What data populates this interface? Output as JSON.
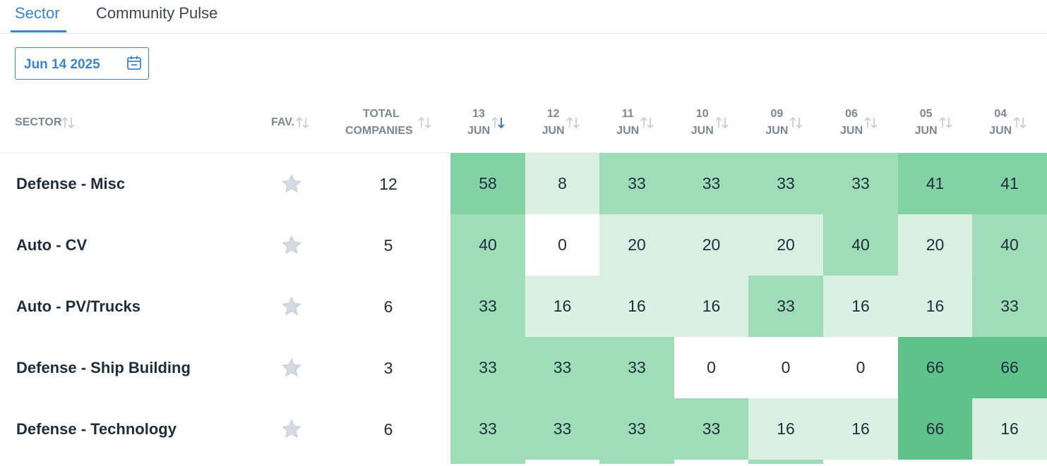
{
  "tabs": [
    {
      "label": "Sector",
      "active": true
    },
    {
      "label": "Community Pulse",
      "active": false
    }
  ],
  "date_picker": {
    "value": "Jun 14 2025",
    "icon": "calendar-icon"
  },
  "headers": {
    "sector": "SECTOR",
    "fav": "FAV.",
    "total_line1": "TOTAL",
    "total_line2": "COMPANIES",
    "dates": [
      {
        "day": "13",
        "month": "JUN",
        "sorted": true
      },
      {
        "day": "12",
        "month": "JUN"
      },
      {
        "day": "11",
        "month": "JUN"
      },
      {
        "day": "10",
        "month": "JUN"
      },
      {
        "day": "09",
        "month": "JUN"
      },
      {
        "day": "06",
        "month": "JUN"
      },
      {
        "day": "05",
        "month": "JUN"
      },
      {
        "day": "04",
        "month": "JUN"
      }
    ]
  },
  "rows": [
    {
      "name": "Defense - Misc",
      "total": "12",
      "values": [
        "58",
        "8",
        "33",
        "33",
        "33",
        "33",
        "41",
        "41"
      ]
    },
    {
      "name": "Auto - CV",
      "total": "5",
      "values": [
        "40",
        "0",
        "20",
        "20",
        "20",
        "40",
        "20",
        "40"
      ]
    },
    {
      "name": "Auto - PV/Trucks",
      "total": "6",
      "values": [
        "33",
        "16",
        "16",
        "16",
        "33",
        "16",
        "16",
        "33"
      ]
    },
    {
      "name": "Defense - Ship Building",
      "total": "3",
      "values": [
        "33",
        "33",
        "33",
        "0",
        "0",
        "0",
        "66",
        "66"
      ]
    },
    {
      "name": "Defense - Technology",
      "total": "6",
      "values": [
        "33",
        "33",
        "33",
        "33",
        "16",
        "16",
        "66",
        "16"
      ]
    }
  ],
  "colors": {
    "accent": "#3b86c9",
    "heat_0": "#ffffff",
    "heat_1_19": "#dbf0e3",
    "heat_20_39": "#d8efe1",
    "heat_33_40": "#9fdcb8",
    "heat_41_59": "#82d2a5",
    "heat_60_plus": "#5fc28a"
  }
}
